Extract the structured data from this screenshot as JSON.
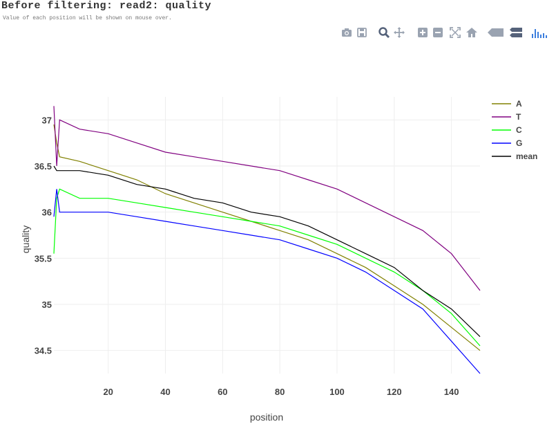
{
  "page": {
    "title": "Before filtering: read2: quality",
    "subtitle": "Value of each position will be shown on mouse over."
  },
  "modebar": {
    "icons": [
      "camera-icon",
      "save-icon",
      "zoom-icon",
      "pan-icon",
      "zoom-in-icon",
      "zoom-out-icon",
      "autoscale-icon",
      "home-icon",
      "hover-closest-icon",
      "hover-compare-icon",
      "plotly-logo-icon"
    ]
  },
  "chart_data": {
    "type": "line",
    "xlabel": "position",
    "ylabel": "quality",
    "xlim": [
      1,
      150
    ],
    "ylim": [
      34.25,
      37.25
    ],
    "x_ticks": [
      20,
      40,
      60,
      80,
      100,
      120,
      140
    ],
    "y_ticks": [
      34.5,
      35,
      35.5,
      36,
      36.5,
      37
    ],
    "grid": true,
    "legend_position": "top-right",
    "x": [
      1,
      2,
      3,
      10,
      20,
      30,
      40,
      50,
      60,
      70,
      80,
      90,
      100,
      110,
      120,
      130,
      140,
      150
    ],
    "series": [
      {
        "name": "A",
        "color": "#808000",
        "values": [
          36.95,
          36.75,
          36.6,
          36.55,
          36.45,
          36.35,
          36.2,
          36.1,
          36.0,
          35.9,
          35.8,
          35.7,
          35.55,
          35.4,
          35.2,
          35.0,
          34.75,
          34.5
        ]
      },
      {
        "name": "T",
        "color": "#800080",
        "values": [
          37.15,
          36.5,
          37.0,
          36.9,
          36.85,
          36.75,
          36.65,
          36.6,
          36.55,
          36.5,
          36.45,
          36.35,
          36.25,
          36.1,
          35.95,
          35.8,
          35.55,
          35.15
        ]
      },
      {
        "name": "C",
        "color": "#00ff00",
        "values": [
          35.55,
          36.15,
          36.25,
          36.15,
          36.15,
          36.1,
          36.05,
          36.0,
          35.95,
          35.9,
          35.85,
          35.75,
          35.65,
          35.5,
          35.35,
          35.15,
          34.9,
          34.55
        ]
      },
      {
        "name": "G",
        "color": "#0000ff",
        "values": [
          35.95,
          36.25,
          36.0,
          36.0,
          36.0,
          35.95,
          35.9,
          35.85,
          35.8,
          35.75,
          35.7,
          35.6,
          35.5,
          35.35,
          35.15,
          34.95,
          34.6,
          34.25
        ]
      },
      {
        "name": "mean",
        "color": "#000000",
        "values": [
          36.5,
          36.45,
          36.45,
          36.45,
          36.4,
          36.3,
          36.25,
          36.15,
          36.1,
          36.0,
          35.95,
          35.85,
          35.7,
          35.55,
          35.4,
          35.15,
          34.95,
          34.65
        ]
      }
    ]
  }
}
